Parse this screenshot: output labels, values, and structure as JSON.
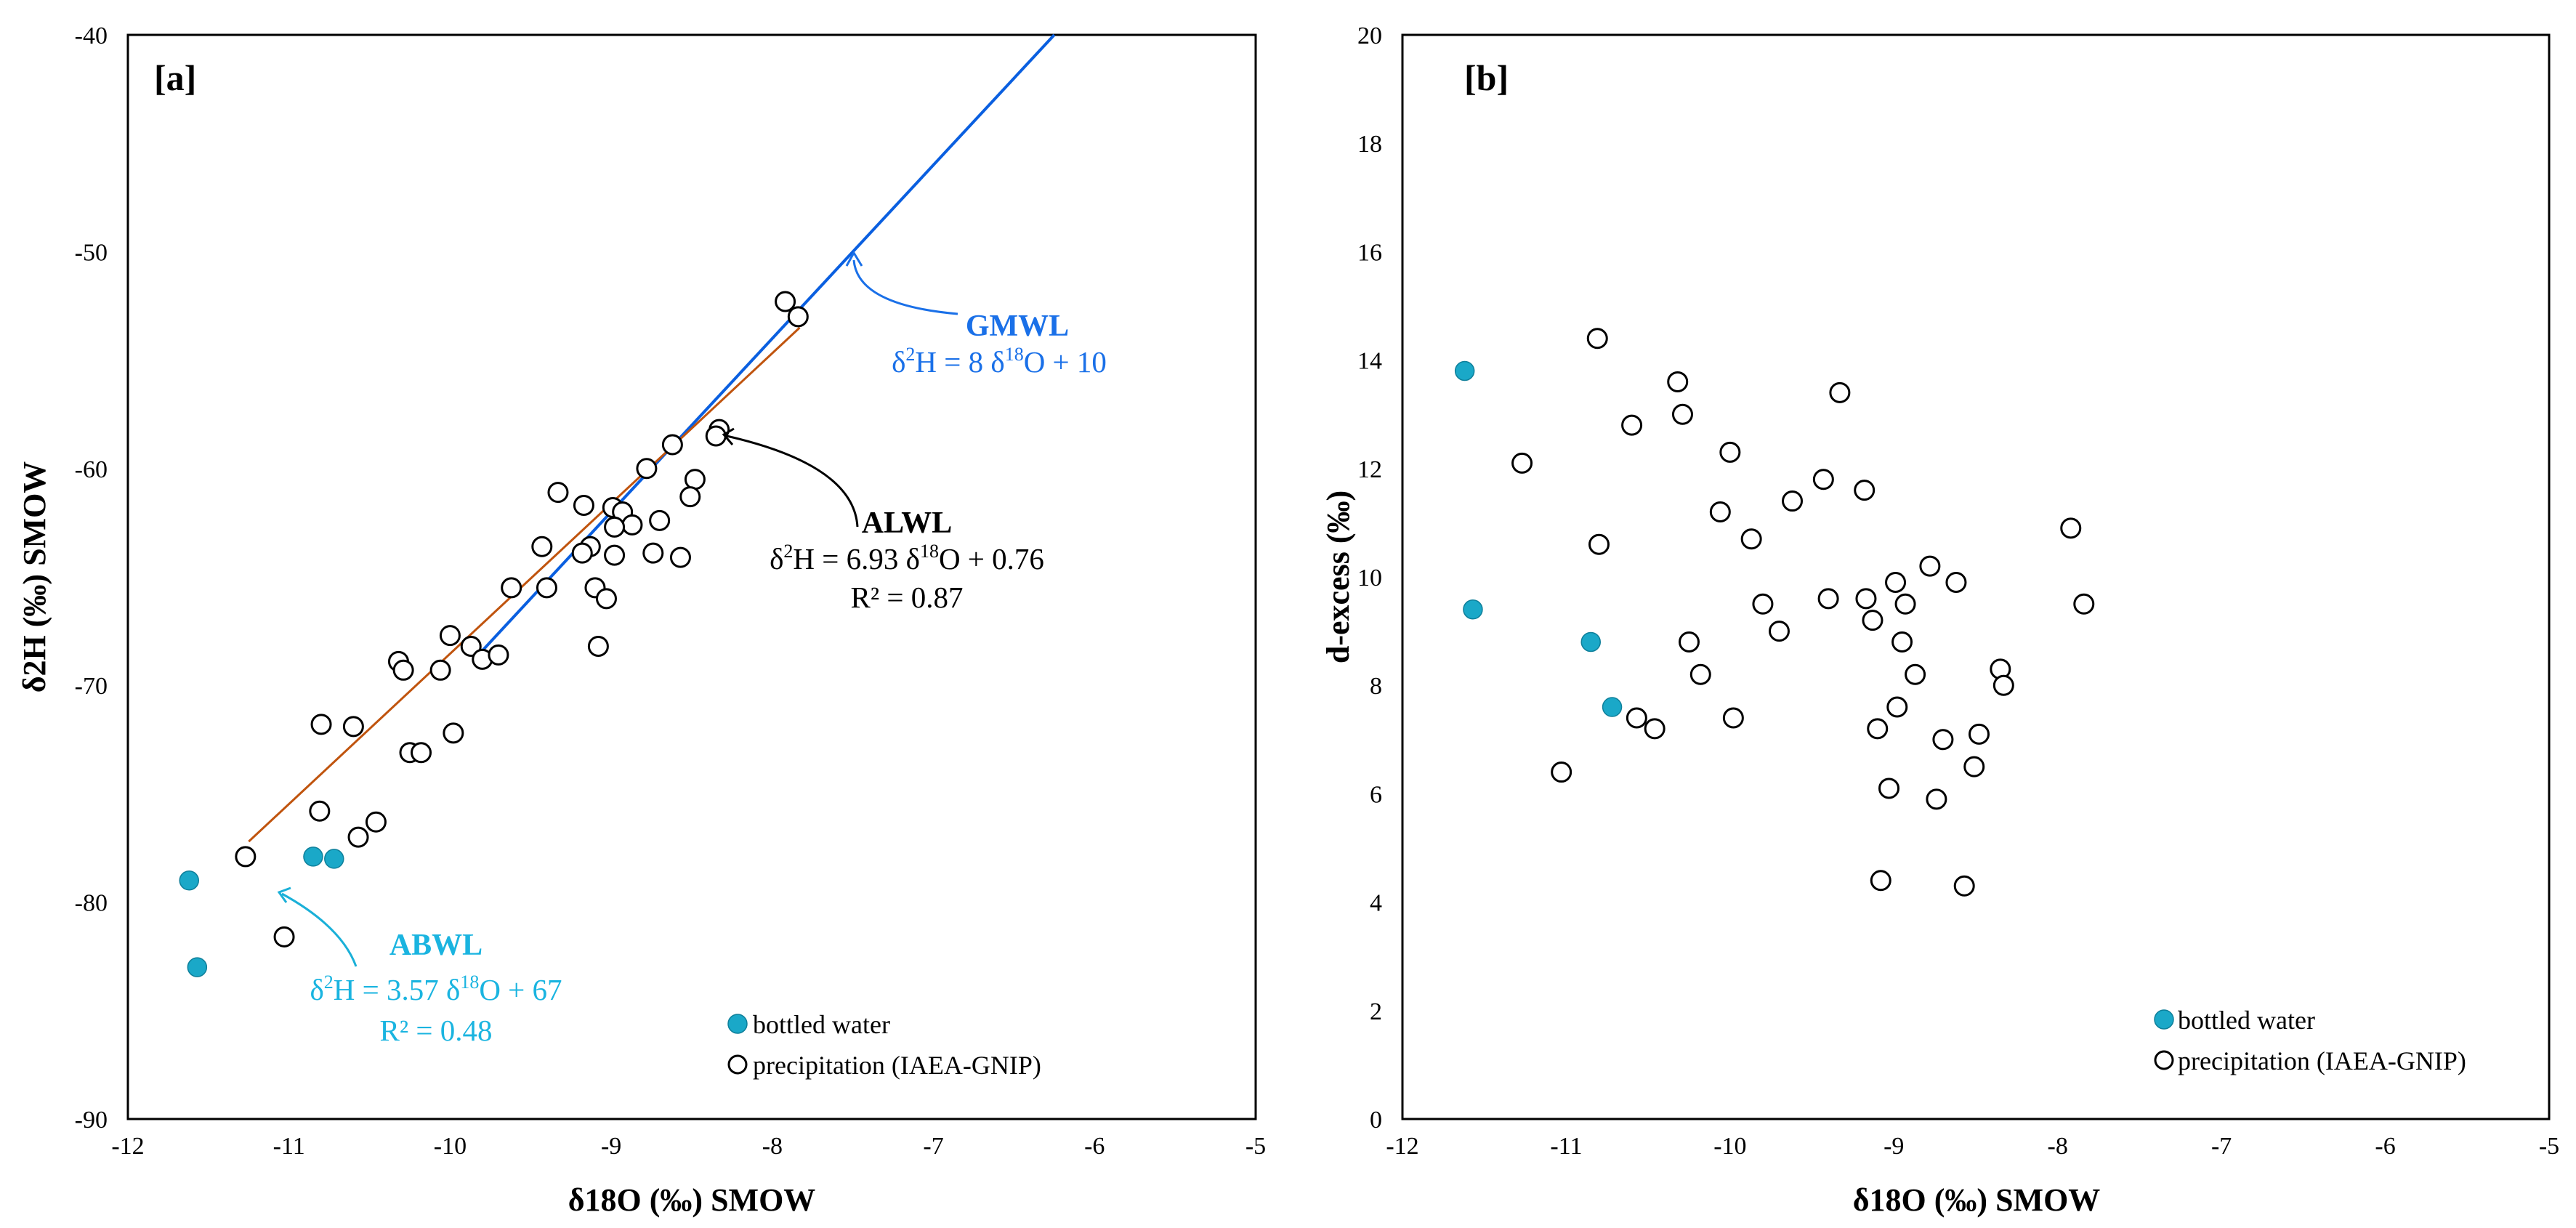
{
  "colors": {
    "bottled": "#1aa8c8",
    "gmwl": "#0a5fe0",
    "alwl": "#c0540e",
    "abwl": "#1ab0d8",
    "eq_gmwl": "#1a70e8",
    "eq_abwl": "#1ab4e0",
    "black": "#000000"
  },
  "chart_data": [
    {
      "type": "scatter",
      "panel_label": "[a]",
      "xlabel": "δ18O (‰) SMOW",
      "ylabel": "δ2H (‰) SMOW",
      "xlim": [
        -12,
        -5
      ],
      "ylim": [
        -90,
        -40
      ],
      "x_ticks": [
        "-12",
        "-11",
        "-10",
        "-9",
        "-8",
        "-7",
        "-6",
        "-5"
      ],
      "y_ticks": [
        "-40",
        "-50",
        "-60",
        "-70",
        "-80",
        "-90"
      ],
      "legend": [
        "bottled water",
        "precipitation (IAEA-GNIP)"
      ],
      "legend_position": "bottom-right",
      "series": [
        {
          "name": "bottled water",
          "marker": "filled-circle",
          "points": [
            [
              -11.62,
              -79.0
            ],
            [
              -11.57,
              -83.0
            ],
            [
              -10.85,
              -77.9
            ],
            [
              -10.72,
              -78.0
            ]
          ]
        },
        {
          "name": "precipitation (IAEA-GNIP)",
          "marker": "open-circle",
          "points": [
            [
              -7.92,
              -52.3
            ],
            [
              -7.84,
              -53.0
            ],
            [
              -8.62,
              -58.9
            ],
            [
              -8.33,
              -58.2
            ],
            [
              -8.35,
              -58.5
            ],
            [
              -8.78,
              -60.0
            ],
            [
              -8.48,
              -60.5
            ],
            [
              -8.51,
              -61.3
            ],
            [
              -9.33,
              -61.1
            ],
            [
              -9.17,
              -61.7
            ],
            [
              -8.99,
              -61.8
            ],
            [
              -8.93,
              -62.0
            ],
            [
              -8.87,
              -62.6
            ],
            [
              -8.98,
              -62.7
            ],
            [
              -8.7,
              -62.4
            ],
            [
              -9.43,
              -63.6
            ],
            [
              -9.13,
              -63.6
            ],
            [
              -9.18,
              -63.9
            ],
            [
              -8.98,
              -64.0
            ],
            [
              -8.74,
              -63.9
            ],
            [
              -8.57,
              -64.1
            ],
            [
              -9.62,
              -65.5
            ],
            [
              -9.4,
              -65.5
            ],
            [
              -9.1,
              -65.5
            ],
            [
              -9.03,
              -66.0
            ],
            [
              -9.08,
              -68.2
            ],
            [
              -10.0,
              -67.7
            ],
            [
              -9.87,
              -68.2
            ],
            [
              -9.8,
              -68.8
            ],
            [
              -9.7,
              -68.6
            ],
            [
              -10.32,
              -68.9
            ],
            [
              -10.29,
              -69.3
            ],
            [
              -10.06,
              -69.3
            ],
            [
              -9.98,
              -72.2
            ],
            [
              -10.8,
              -71.8
            ],
            [
              -10.6,
              -71.9
            ],
            [
              -10.25,
              -73.1
            ],
            [
              -10.18,
              -73.1
            ],
            [
              -10.81,
              -75.8
            ],
            [
              -10.46,
              -76.3
            ],
            [
              -10.57,
              -77.0
            ],
            [
              -11.27,
              -77.9
            ],
            [
              -11.03,
              -81.6
            ]
          ]
        }
      ],
      "lines": [
        {
          "name": "GMWL",
          "equation": "δ2H = 8 δ18O + 10",
          "slope": 8,
          "intercept": 10,
          "x_range": [
            -9.82,
            -6.25
          ]
        },
        {
          "name": "ALWL",
          "equation": "δ2H = 6.93 δ18O + 0.76",
          "r2": "R² = 0.87",
          "slope": 6.93,
          "intercept": 0.76,
          "x_range": [
            -11.25,
            -7.83
          ]
        },
        {
          "name": "ABWL",
          "equation": "δ2H = 3.57 δ18O + 67",
          "r2": "R² = 0.48",
          "slope": 3.57,
          "intercept": 67,
          "x_range": [
            -11.62,
            -10.8
          ]
        }
      ],
      "annotations": {
        "gmwl": {
          "name": "GMWL",
          "eq_lhs": "δ",
          "eq_sup1": "2",
          "eq_mid": "H = 8 δ",
          "eq_sup2": "18",
          "eq_rhs": "O + 10"
        },
        "alwl": {
          "name": "ALWL",
          "eq_lhs": "δ",
          "eq_sup1": "2",
          "eq_mid": "H = 6.93 δ",
          "eq_sup2": "18",
          "eq_rhs": "O + 0.76",
          "r2": "R² = 0.87"
        },
        "abwl": {
          "name": "ABWL",
          "eq_lhs": "δ",
          "eq_sup1": "2",
          "eq_mid": "H = 3.57 δ",
          "eq_sup2": "18",
          "eq_rhs": "O + 67",
          "r2": "R² = 0.48"
        }
      }
    },
    {
      "type": "scatter",
      "panel_label": "[b]",
      "xlabel": "δ18O (‰) SMOW",
      "ylabel": "d-excess  (‰)",
      "xlim": [
        -12,
        -5
      ],
      "ylim": [
        0,
        20
      ],
      "x_ticks": [
        "-12",
        "-11",
        "-10",
        "-9",
        "-8",
        "-7",
        "-6",
        "-5"
      ],
      "y_ticks": [
        "0",
        "2",
        "4",
        "6",
        "8",
        "10",
        "12",
        "14",
        "16",
        "18",
        "20"
      ],
      "legend": [
        "bottled water",
        "precipitation (IAEA-GNIP)"
      ],
      "legend_position": "bottom-right",
      "series": [
        {
          "name": "bottled water",
          "marker": "filled-circle",
          "points": [
            [
              -11.62,
              13.8
            ],
            [
              -11.57,
              9.4
            ],
            [
              -10.85,
              8.8
            ],
            [
              -10.72,
              7.6
            ]
          ]
        },
        {
          "name": "precipitation (IAEA-GNIP)",
          "marker": "open-circle",
          "points": [
            [
              -10.81,
              14.4
            ],
            [
              -10.32,
              13.6
            ],
            [
              -10.29,
              13.0
            ],
            [
              -9.33,
              13.4
            ],
            [
              -10.6,
              12.8
            ],
            [
              -11.27,
              12.1
            ],
            [
              -10.0,
              12.3
            ],
            [
              -9.43,
              11.8
            ],
            [
              -9.62,
              11.4
            ],
            [
              -9.18,
              11.6
            ],
            [
              -10.06,
              11.2
            ],
            [
              -9.87,
              10.7
            ],
            [
              -10.8,
              10.6
            ],
            [
              -7.92,
              10.9
            ],
            [
              -8.78,
              10.2
            ],
            [
              -8.62,
              9.9
            ],
            [
              -8.99,
              9.9
            ],
            [
              -9.4,
              9.6
            ],
            [
              -9.8,
              9.5
            ],
            [
              -9.17,
              9.6
            ],
            [
              -8.93,
              9.5
            ],
            [
              -7.84,
              9.5
            ],
            [
              -9.7,
              9.0
            ],
            [
              -9.13,
              9.2
            ],
            [
              -8.95,
              8.8
            ],
            [
              -10.25,
              8.8
            ],
            [
              -8.35,
              8.3
            ],
            [
              -8.87,
              8.2
            ],
            [
              -10.18,
              8.2
            ],
            [
              -8.33,
              8.0
            ],
            [
              -8.98,
              7.6
            ],
            [
              -9.98,
              7.4
            ],
            [
              -10.57,
              7.4
            ],
            [
              -10.46,
              7.2
            ],
            [
              -9.1,
              7.2
            ],
            [
              -8.48,
              7.1
            ],
            [
              -8.7,
              7.0
            ],
            [
              -8.51,
              6.5
            ],
            [
              -11.03,
              6.4
            ],
            [
              -9.03,
              6.1
            ],
            [
              -8.74,
              5.9
            ],
            [
              -9.08,
              4.4
            ],
            [
              -8.57,
              4.3
            ]
          ]
        }
      ]
    }
  ]
}
